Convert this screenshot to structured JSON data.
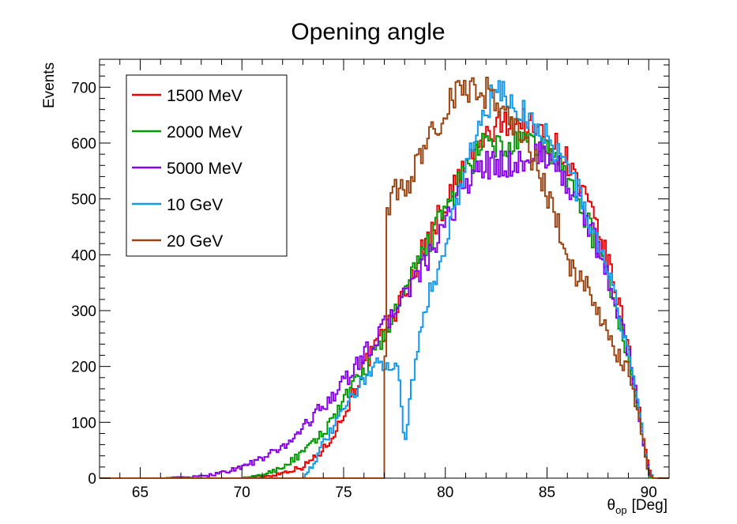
{
  "chart_data": {
    "type": "histogram",
    "title": "Opening angle",
    "xlabel_symbol": "θ",
    "xlabel_sub": "op",
    "xlabel_unit": "[Deg]",
    "ylabel": "Events",
    "xlim": [
      63,
      91
    ],
    "ylim": [
      0,
      750
    ],
    "x_ticks": [
      "65",
      "70",
      "75",
      "80",
      "85",
      "90"
    ],
    "y_ticks": [
      "0",
      "100",
      "200",
      "300",
      "400",
      "500",
      "600",
      "700"
    ],
    "legend_position": "top-left",
    "grid": false,
    "series": [
      {
        "name": "1500 MeV",
        "color": "#ee0000",
        "points": [
          [
            66,
            0
          ],
          [
            70,
            0
          ],
          [
            71.5,
            5
          ],
          [
            73,
            20
          ],
          [
            74,
            50
          ],
          [
            75,
            110
          ],
          [
            76,
            200
          ],
          [
            77,
            260
          ],
          [
            78,
            330
          ],
          [
            79,
            420
          ],
          [
            80,
            490
          ],
          [
            81,
            560
          ],
          [
            82,
            610
          ],
          [
            83,
            640
          ],
          [
            84,
            635
          ],
          [
            85,
            610
          ],
          [
            86,
            570
          ],
          [
            87,
            490
          ],
          [
            88,
            390
          ],
          [
            89,
            240
          ],
          [
            89.5,
            130
          ],
          [
            90,
            15
          ],
          [
            90.2,
            0
          ],
          [
            91,
            0
          ]
        ]
      },
      {
        "name": "2000 MeV",
        "color": "#009900",
        "points": [
          [
            66,
            0
          ],
          [
            70,
            0
          ],
          [
            71,
            5
          ],
          [
            72,
            20
          ],
          [
            73,
            45
          ],
          [
            74,
            80
          ],
          [
            75,
            140
          ],
          [
            76,
            190
          ],
          [
            77,
            255
          ],
          [
            78,
            330
          ],
          [
            79,
            410
          ],
          [
            80,
            480
          ],
          [
            81,
            550
          ],
          [
            82,
            600
          ],
          [
            83,
            590
          ],
          [
            84,
            600
          ],
          [
            85,
            590
          ],
          [
            86,
            540
          ],
          [
            87,
            460
          ],
          [
            88,
            360
          ],
          [
            89,
            220
          ],
          [
            89.5,
            120
          ],
          [
            90,
            10
          ],
          [
            90.2,
            0
          ],
          [
            91,
            0
          ]
        ]
      },
      {
        "name": "5000 MeV",
        "color": "#8800ee",
        "points": [
          [
            66,
            0
          ],
          [
            68,
            3
          ],
          [
            69,
            10
          ],
          [
            70,
            20
          ],
          [
            71,
            35
          ],
          [
            72,
            55
          ],
          [
            73,
            90
          ],
          [
            74,
            130
          ],
          [
            75,
            170
          ],
          [
            76,
            220
          ],
          [
            77,
            270
          ],
          [
            78,
            330
          ],
          [
            79,
            380
          ],
          [
            80,
            450
          ],
          [
            81,
            530
          ],
          [
            82,
            560
          ],
          [
            83,
            560
          ],
          [
            84,
            570
          ],
          [
            85,
            580
          ],
          [
            86,
            530
          ],
          [
            87,
            460
          ],
          [
            88,
            360
          ],
          [
            89,
            230
          ],
          [
            89.5,
            120
          ],
          [
            90,
            10
          ],
          [
            90.2,
            0
          ],
          [
            91,
            0
          ]
        ]
      },
      {
        "name": "10 GeV",
        "color": "#1199ee",
        "points": [
          [
            66,
            0
          ],
          [
            73,
            0
          ],
          [
            73.5,
            25
          ],
          [
            74,
            60
          ],
          [
            75,
            120
          ],
          [
            76,
            180
          ],
          [
            77,
            210
          ],
          [
            77.7,
            200
          ],
          [
            78,
            50
          ],
          [
            78.3,
            160
          ],
          [
            79,
            300
          ],
          [
            80,
            420
          ],
          [
            81,
            560
          ],
          [
            82,
            660
          ],
          [
            82.5,
            690
          ],
          [
            83,
            680
          ],
          [
            84,
            650
          ],
          [
            85,
            610
          ],
          [
            86,
            560
          ],
          [
            87,
            470
          ],
          [
            88,
            370
          ],
          [
            89,
            230
          ],
          [
            89.5,
            120
          ],
          [
            90,
            15
          ],
          [
            90.2,
            0
          ],
          [
            91,
            0
          ]
        ]
      },
      {
        "name": "20 GeV",
        "color": "#994411",
        "points": [
          [
            63,
            0
          ],
          [
            77,
            0
          ],
          [
            77.1,
            470
          ],
          [
            77.5,
            510
          ],
          [
            78,
            520
          ],
          [
            78.5,
            550
          ],
          [
            79,
            600
          ],
          [
            79.5,
            630
          ],
          [
            80,
            650
          ],
          [
            80.5,
            690
          ],
          [
            81,
            690
          ],
          [
            81.5,
            700
          ],
          [
            82,
            690
          ],
          [
            82.5,
            680
          ],
          [
            83,
            650
          ],
          [
            83.5,
            630
          ],
          [
            84,
            590
          ],
          [
            84.5,
            560
          ],
          [
            85,
            510
          ],
          [
            85.5,
            460
          ],
          [
            86,
            380
          ],
          [
            86.5,
            360
          ],
          [
            87,
            340
          ],
          [
            87.5,
            290
          ],
          [
            88,
            260
          ],
          [
            88.5,
            220
          ],
          [
            89,
            190
          ],
          [
            89.5,
            110
          ],
          [
            90,
            10
          ],
          [
            90.2,
            0
          ],
          [
            91,
            0
          ]
        ]
      }
    ]
  }
}
